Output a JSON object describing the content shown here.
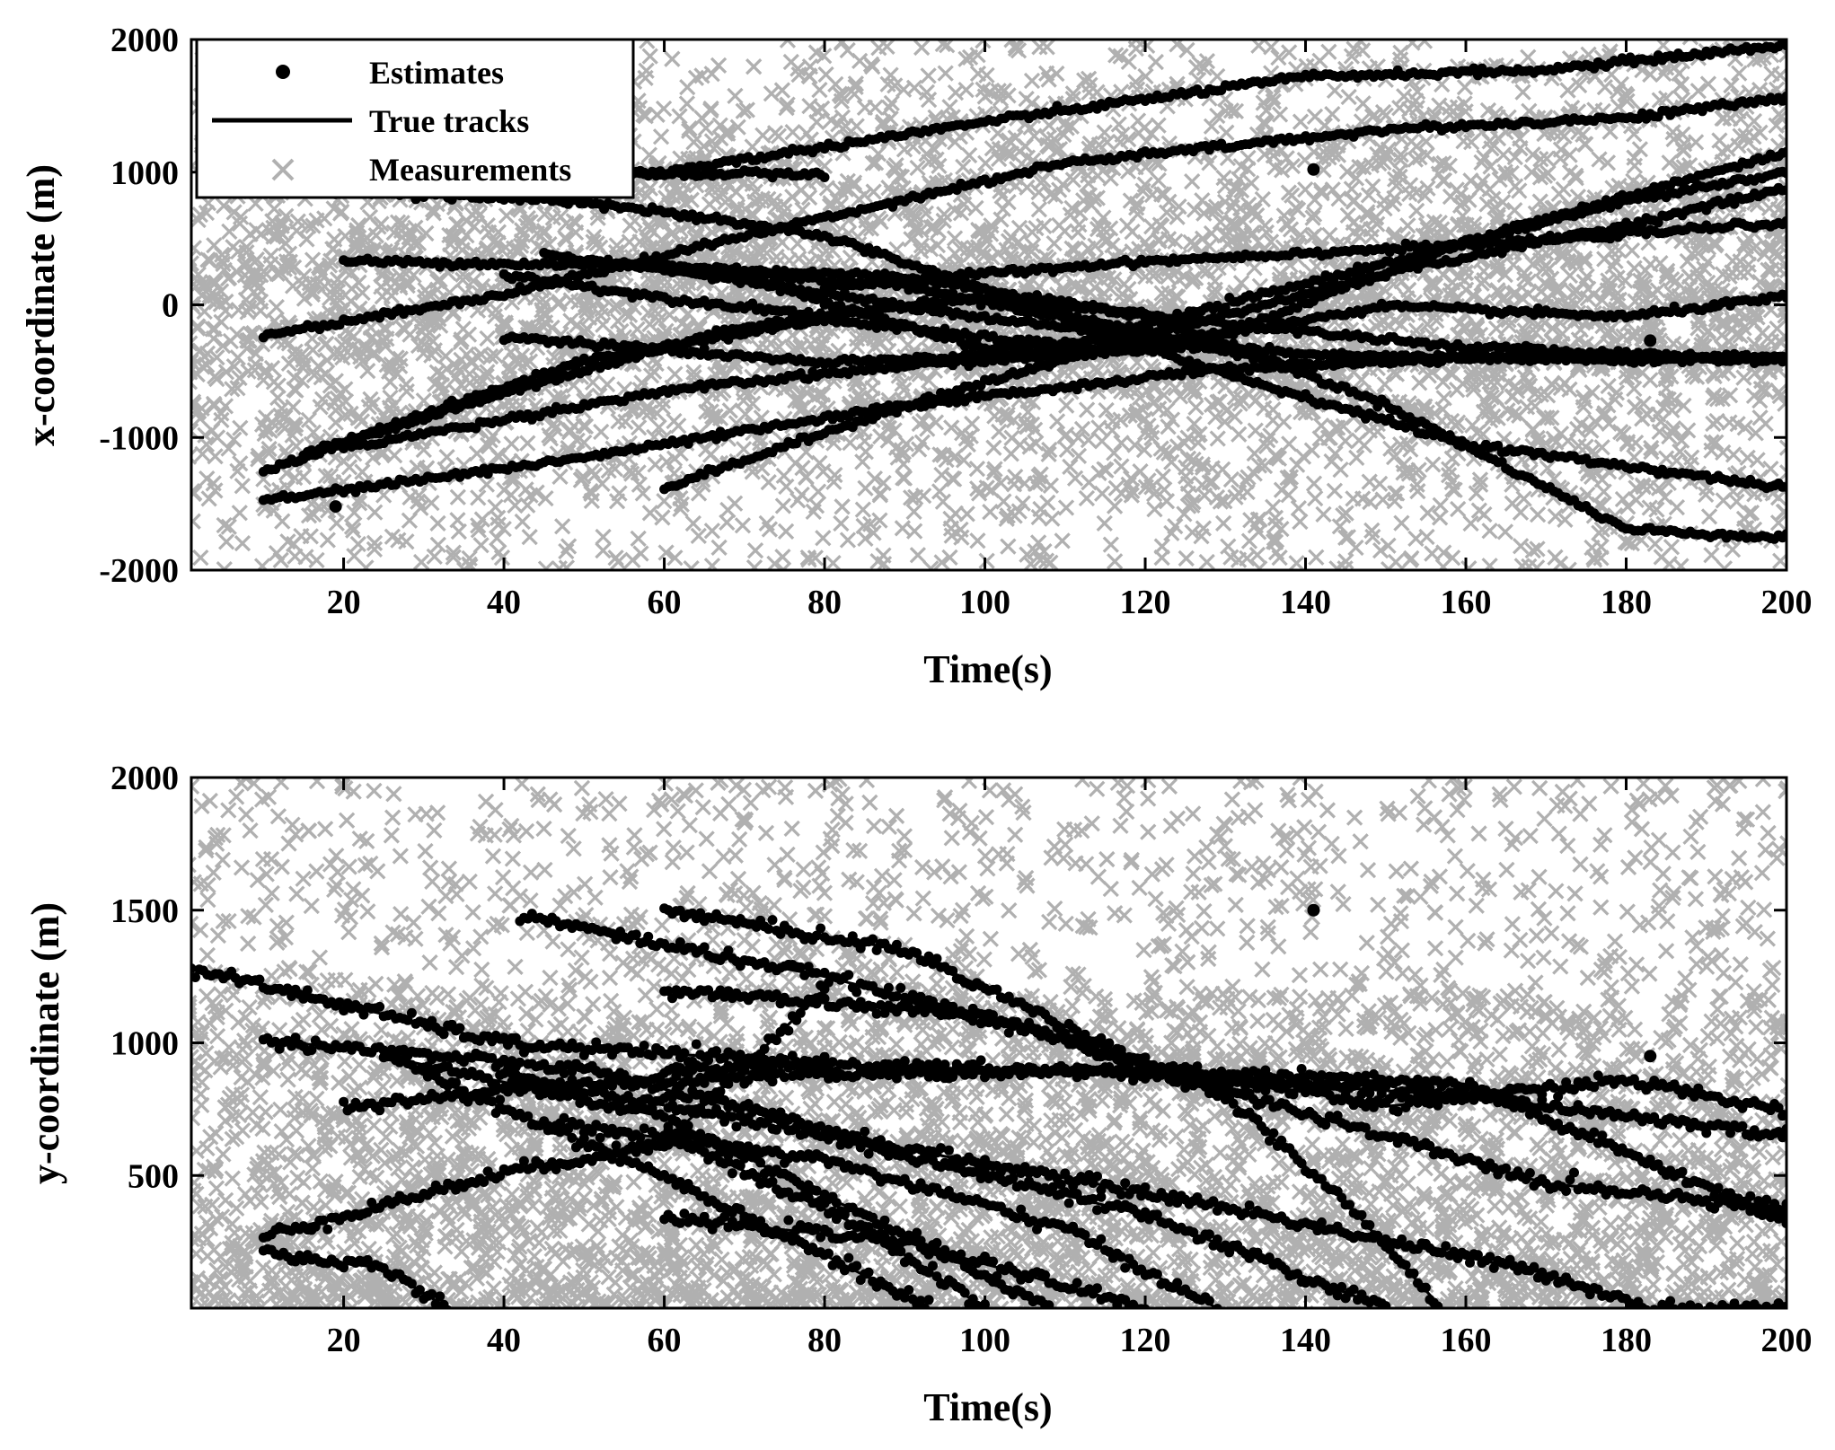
{
  "chart_data": [
    {
      "type": "scatter",
      "title": "",
      "xlabel": "Time(s)",
      "ylabel": "x-coordinate (m)",
      "xlim": [
        1,
        200
      ],
      "ylim": [
        -2000,
        2000
      ],
      "xticks": [
        20,
        40,
        60,
        80,
        100,
        120,
        140,
        160,
        180,
        200
      ],
      "yticks": [
        -2000,
        -1000,
        0,
        1000,
        2000
      ],
      "xtick_labels": [
        "20",
        "40",
        "60",
        "80",
        "100",
        "120",
        "140",
        "160",
        "180",
        "200"
      ],
      "ytick_labels": [
        "-2000",
        "-1000",
        "0",
        "1000",
        "2000"
      ],
      "legend": {
        "position": "top-left",
        "entries": [
          {
            "label": "Estimates",
            "marker": "dot",
            "color": "#000000"
          },
          {
            "label": "True tracks",
            "marker": "line",
            "color": "#000000"
          },
          {
            "label": "Measurements",
            "marker": "x",
            "color": "#b0b0b0"
          }
        ]
      },
      "measurements": {
        "name": "Measurements",
        "color": "#b0b0b0",
        "count_per_second": 22,
        "range": [
          -2000,
          2000
        ]
      },
      "tracks": [
        {
          "name": "track-1",
          "t0": 10,
          "t1": 200,
          "points": [
            [
              10,
              -1480
            ],
            [
              50,
              -1150
            ],
            [
              90,
              -760
            ],
            [
              130,
              -480
            ],
            [
              170,
              -380
            ],
            [
              200,
              -400
            ]
          ]
        },
        {
          "name": "track-2",
          "t0": 10,
          "t1": 200,
          "points": [
            [
              10,
              -1250
            ],
            [
              40,
              -660
            ],
            [
              70,
              -160
            ],
            [
              100,
              60
            ],
            [
              130,
              -140
            ],
            [
              160,
              -320
            ],
            [
              200,
              -420
            ]
          ]
        },
        {
          "name": "track-3",
          "t0": 10,
          "t1": 200,
          "points": [
            [
              10,
              -230
            ],
            [
              40,
              80
            ],
            [
              70,
              520
            ],
            [
              110,
              1070
            ],
            [
              150,
              1320
            ],
            [
              180,
              1410
            ],
            [
              200,
              1560
            ]
          ]
        },
        {
          "name": "track-4",
          "t0": 40,
          "t1": 200,
          "points": [
            [
              40,
              -240
            ],
            [
              80,
              -440
            ],
            [
              120,
              -320
            ],
            [
              150,
              -10
            ],
            [
              180,
              -90
            ],
            [
              200,
              60
            ]
          ]
        },
        {
          "name": "track-5",
          "t0": 60,
          "t1": 200,
          "points": [
            [
              60,
              280
            ],
            [
              90,
              140
            ],
            [
              110,
              -100
            ],
            [
              130,
              -520
            ],
            [
              160,
              -1050
            ],
            [
              200,
              -1380
            ]
          ]
        },
        {
          "name": "track-6",
          "t0": 20,
          "t1": 200,
          "points": [
            [
              20,
              330
            ],
            [
              60,
              290
            ],
            [
              90,
              210
            ],
            [
              120,
              -80
            ],
            [
              150,
              -750
            ],
            [
              180,
              -1690
            ],
            [
              200,
              -1760
            ]
          ]
        },
        {
          "name": "track-7",
          "t0": 60,
          "t1": 200,
          "points": [
            [
              60,
              -1380
            ],
            [
              90,
              -760
            ],
            [
              120,
              -240
            ],
            [
              150,
              240
            ],
            [
              180,
              600
            ],
            [
              200,
              880
            ]
          ]
        },
        {
          "name": "track-8",
          "t0": 15,
          "t1": 200,
          "points": [
            [
              15,
              -1130
            ],
            [
              50,
              -420
            ],
            [
              80,
              -110
            ],
            [
              110,
              -310
            ],
            [
              140,
              160
            ],
            [
              180,
              780
            ],
            [
              200,
              1000
            ]
          ]
        },
        {
          "name": "track-9",
          "t0": 10,
          "t1": 200,
          "points": [
            [
              10,
              1050
            ],
            [
              40,
              980
            ],
            [
              60,
              1000
            ],
            [
              100,
              1380
            ],
            [
              140,
              1720
            ],
            [
              170,
              1770
            ],
            [
              200,
              1960
            ]
          ]
        },
        {
          "name": "track-10",
          "t0": 45,
          "t1": 200,
          "points": [
            [
              45,
              380
            ],
            [
              70,
              200
            ],
            [
              100,
              -330
            ],
            [
              130,
              -220
            ],
            [
              160,
              480
            ],
            [
              200,
              1150
            ]
          ]
        },
        {
          "name": "track-11",
          "t0": 10,
          "t1": 140,
          "points": [
            [
              10,
              880
            ],
            [
              50,
              780
            ],
            [
              80,
              520
            ],
            [
              110,
              -80
            ],
            [
              140,
              -480
            ]
          ]
        },
        {
          "name": "track-12",
          "t0": 20,
          "t1": 130,
          "points": [
            [
              20,
              -1080
            ],
            [
              60,
              -650
            ],
            [
              90,
              -460
            ],
            [
              130,
              -300
            ]
          ]
        },
        {
          "name": "track-13",
          "t0": 40,
          "t1": 80,
          "points": [
            [
              40,
              230
            ],
            [
              60,
              50
            ],
            [
              80,
              -80
            ]
          ]
        },
        {
          "name": "track-14",
          "t0": 60,
          "t1": 200,
          "points": [
            [
              60,
              270
            ],
            [
              100,
              -100
            ],
            [
              140,
              -380
            ],
            [
              180,
              -420
            ],
            [
              200,
              -400
            ]
          ]
        },
        {
          "name": "track-15",
          "t0": 80,
          "t1": 200,
          "points": [
            [
              80,
              140
            ],
            [
              120,
              330
            ],
            [
              160,
              450
            ],
            [
              200,
              620
            ]
          ]
        },
        {
          "name": "track-16",
          "t0": 15,
          "t1": 80,
          "points": [
            [
              15,
              1030
            ],
            [
              50,
              980
            ],
            [
              80,
              990
            ]
          ]
        }
      ],
      "outlier_estimates": [
        [
          19,
          -1520
        ],
        [
          141,
          1020
        ],
        [
          183,
          -270
        ],
        [
          191,
          -5
        ]
      ]
    },
    {
      "type": "scatter",
      "title": "",
      "xlabel": "Time(s)",
      "ylabel": "y-coordinate (m)",
      "xlim": [
        1,
        200
      ],
      "ylim": [
        0,
        2000
      ],
      "xticks": [
        20,
        40,
        60,
        80,
        100,
        120,
        140,
        160,
        180,
        200
      ],
      "yticks": [
        500,
        1000,
        1500,
        2000
      ],
      "xtick_labels": [
        "20",
        "40",
        "60",
        "80",
        "100",
        "120",
        "140",
        "160",
        "180",
        "200"
      ],
      "ytick_labels": [
        "500",
        "1000",
        "1500",
        "2000"
      ],
      "measurements": {
        "name": "Measurements",
        "color": "#b0b0b0",
        "count_per_second": 22,
        "range": [
          0,
          2000
        ]
      },
      "tracks": [
        {
          "name": "track-1",
          "t0": 1,
          "t1": 200,
          "points": [
            [
              1,
              1280
            ],
            [
              40,
              1000
            ],
            [
              80,
              920
            ],
            [
              120,
              880
            ],
            [
              160,
              800
            ],
            [
              200,
              650
            ]
          ]
        },
        {
          "name": "track-2",
          "t0": 10,
          "t1": 200,
          "points": [
            [
              10,
              1010
            ],
            [
              50,
              900
            ],
            [
              90,
              600
            ],
            [
              130,
              380
            ],
            [
              170,
              130
            ],
            [
              183,
              0
            ]
          ]
        },
        {
          "name": "track-3",
          "t0": 10,
          "t1": 80,
          "points": [
            [
              10,
              270
            ],
            [
              40,
              510
            ],
            [
              60,
              620
            ],
            [
              80,
              1200
            ]
          ]
        },
        {
          "name": "track-4",
          "t0": 42,
          "t1": 157,
          "points": [
            [
              42,
              1480
            ],
            [
              80,
              1250
            ],
            [
              110,
              1020
            ],
            [
              130,
              800
            ],
            [
              145,
              400
            ],
            [
              157,
              0
            ]
          ]
        },
        {
          "name": "track-5",
          "t0": 60,
          "t1": 200,
          "points": [
            [
              60,
              1500
            ],
            [
              90,
              1350
            ],
            [
              120,
              920
            ],
            [
              150,
              760
            ],
            [
              180,
              860
            ],
            [
              200,
              740
            ]
          ]
        },
        {
          "name": "track-6",
          "t0": 20,
          "t1": 200,
          "points": [
            [
              20,
              760
            ],
            [
              50,
              850
            ],
            [
              80,
              880
            ],
            [
              120,
              900
            ],
            [
              160,
              840
            ],
            [
              200,
              330
            ]
          ]
        },
        {
          "name": "track-7",
          "t0": 10,
          "t1": 33,
          "points": [
            [
              10,
              210
            ],
            [
              25,
              150
            ],
            [
              33,
              0
            ]
          ]
        },
        {
          "name": "track-8",
          "t0": 30,
          "t1": 93,
          "points": [
            [
              30,
              880
            ],
            [
              60,
              500
            ],
            [
              80,
              200
            ],
            [
              93,
              0
            ]
          ]
        },
        {
          "name": "track-9",
          "t0": 60,
          "t1": 120,
          "points": [
            [
              60,
              340
            ],
            [
              90,
              250
            ],
            [
              120,
              0
            ]
          ]
        },
        {
          "name": "track-10",
          "t0": 25,
          "t1": 108,
          "points": [
            [
              25,
              950
            ],
            [
              60,
              720
            ],
            [
              85,
              350
            ],
            [
              108,
              0
            ]
          ]
        },
        {
          "name": "track-11",
          "t0": 60,
          "t1": 200,
          "points": [
            [
              60,
              1200
            ],
            [
              100,
              1100
            ],
            [
              130,
              820
            ],
            [
              170,
              470
            ],
            [
              200,
              380
            ]
          ]
        },
        {
          "name": "track-12",
          "t0": 45,
          "t1": 129,
          "points": [
            [
              45,
              700
            ],
            [
              80,
              560
            ],
            [
              110,
              300
            ],
            [
              129,
              0
            ]
          ]
        },
        {
          "name": "track-13",
          "t0": 40,
          "t1": 150,
          "points": [
            [
              40,
              880
            ],
            [
              80,
              650
            ],
            [
              120,
              350
            ],
            [
              150,
              0
            ]
          ]
        },
        {
          "name": "track-14",
          "t0": 60,
          "t1": 100,
          "points": [
            [
              60,
              660
            ],
            [
              85,
              300
            ],
            [
              100,
              0
            ]
          ]
        },
        {
          "name": "track-15",
          "t0": 60,
          "t1": 80,
          "points": [
            [
              60,
              900
            ],
            [
              80,
              920
            ]
          ]
        }
      ],
      "outlier_estimates": [
        [
          141,
          1500
        ],
        [
          183,
          950
        ]
      ]
    }
  ]
}
